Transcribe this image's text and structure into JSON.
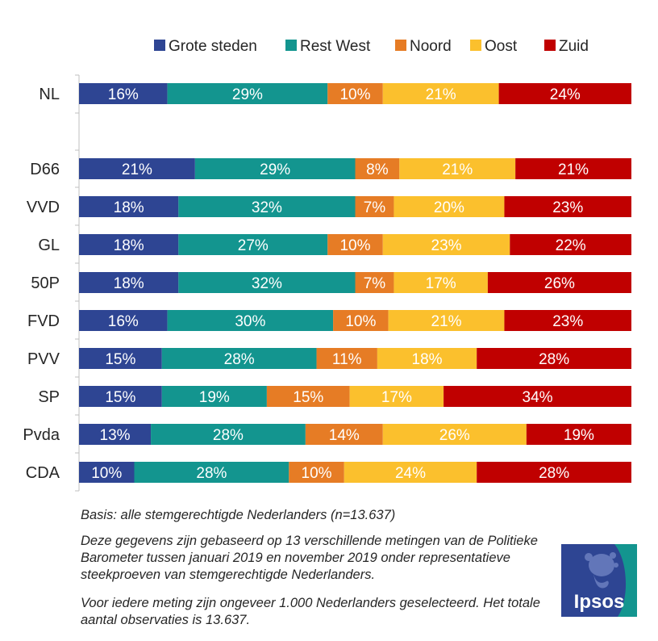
{
  "colors": {
    "Grote steden": "#2E4593",
    "Rest West": "#13958F",
    "Noord": "#E67C25",
    "Oost": "#FBC02D",
    "Zuid": "#C00000",
    "axis": "#BFBFBF",
    "text": "#262626"
  },
  "chart_data": {
    "type": "bar",
    "orientation": "horizontal",
    "stacked": true,
    "normalized": true,
    "legend_position": "top",
    "grid": false,
    "xlim": [
      0,
      100
    ],
    "value_suffix": "%",
    "categories": [
      "NL",
      "D66",
      "VVD",
      "GL",
      "50P",
      "FVD",
      "PVV",
      "SP",
      "Pvda",
      "CDA"
    ],
    "series": [
      {
        "name": "Grote steden",
        "values": [
          16,
          21,
          18,
          18,
          18,
          16,
          15,
          15,
          13,
          10
        ]
      },
      {
        "name": "Rest West",
        "values": [
          29,
          29,
          32,
          27,
          32,
          30,
          28,
          19,
          28,
          28
        ]
      },
      {
        "name": "Noord",
        "values": [
          10,
          8,
          7,
          10,
          7,
          10,
          11,
          15,
          14,
          10
        ]
      },
      {
        "name": "Oost",
        "values": [
          21,
          21,
          20,
          23,
          17,
          21,
          18,
          17,
          26,
          24
        ]
      },
      {
        "name": "Zuid",
        "values": [
          24,
          21,
          23,
          22,
          26,
          23,
          28,
          34,
          19,
          28
        ]
      }
    ]
  },
  "notes": {
    "basis": "Basis: alle stemgerechtigde Nederlanders (n=13.637)",
    "paragraph1": "Deze gegevens zijn gebaseerd op 13 verschillende metingen van de Politieke Barometer tussen januari 2019 en november 2019 onder representatieve steekproeven van stemgerechtigde Nederlanders.",
    "paragraph2": "Voor iedere meting zijn ongeveer 1.000 Nederlanders geselecteerd. Het totale aantal observaties is 13.637."
  },
  "logo": {
    "text": "Ipsos",
    "icon": "ipsos-logo-icon"
  }
}
